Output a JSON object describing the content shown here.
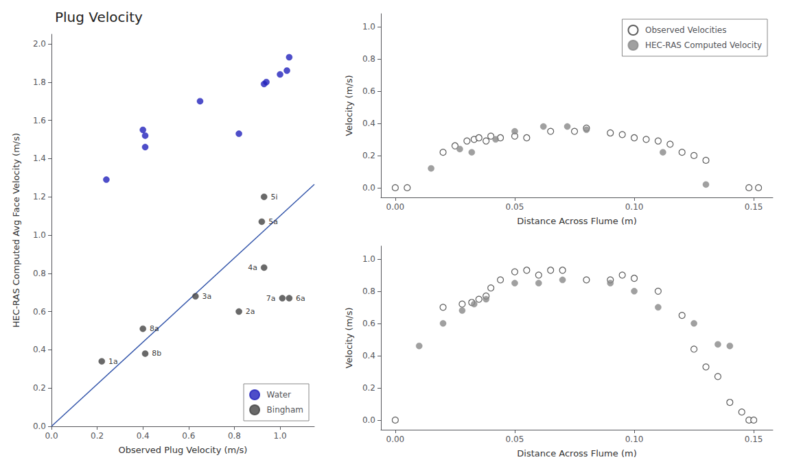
{
  "chart_data": [
    {
      "type": "scatter",
      "title": "Plug Velocity",
      "xlabel": "Observed Plug Velocity (m/s)",
      "ylabel": "HEC-RAS Computed Avg Face Velocity (m/s)",
      "xlim": [
        0.0,
        1.15
      ],
      "ylim": [
        0.0,
        2.05
      ],
      "xticks": [
        {
          "value": 0.0,
          "label": "0.0"
        },
        0.2,
        0.4,
        0.6,
        0.8,
        {
          "value": 1.0,
          "label": "1.0"
        }
      ],
      "yticks": [
        {
          "value": 0.0,
          "label": "0.0"
        },
        0.2,
        0.4,
        0.6,
        0.8,
        {
          "value": 1.0,
          "label": "1.0"
        },
        1.2,
        1.4,
        1.6,
        1.8,
        {
          "value": 2.0,
          "label": "2.0"
        }
      ],
      "grid": false,
      "legend": "lower right",
      "series": [
        {
          "type": "line",
          "color": "#3355aa",
          "x": [
            0.0,
            1.15
          ],
          "values": [
            0.0,
            1.265
          ]
        },
        {
          "name": "Water",
          "color": "#2222bb",
          "marker": "circle",
          "x": [
            0.24,
            0.4,
            0.41,
            0.41,
            0.65,
            0.82,
            0.93,
            0.94,
            1.0,
            1.03,
            1.04
          ],
          "values": [
            1.29,
            1.55,
            1.52,
            1.46,
            1.7,
            1.53,
            1.79,
            1.8,
            1.84,
            1.86,
            1.93
          ]
        },
        {
          "name": "Bingham",
          "color": "#444444",
          "marker": "circle",
          "x": [
            0.22,
            0.4,
            0.41,
            0.63,
            0.82,
            0.92,
            0.93,
            1.01,
            1.04,
            0.93
          ],
          "values": [
            0.34,
            0.51,
            0.38,
            0.68,
            0.6,
            1.07,
            0.83,
            0.67,
            0.67,
            1.2
          ],
          "labels": [
            "1a",
            "8a",
            "8b",
            "3a",
            "2a",
            "5a",
            "4a",
            "7a",
            "6a",
            "5i"
          ]
        }
      ]
    },
    {
      "type": "scatter",
      "xlabel": "Distance Across Flume (m)",
      "ylabel": "Velocity (m/s)",
      "xlim": [
        -0.006,
        0.158
      ],
      "ylim": [
        -0.06,
        1.08
      ],
      "xticks": [
        {
          "value": 0.0,
          "label": "0.00"
        },
        {
          "value": 0.05,
          "label": "0.05"
        },
        {
          "value": 0.1,
          "label": "0.10"
        },
        {
          "value": 0.15,
          "label": "0.15"
        }
      ],
      "yticks": [
        {
          "value": 0.0,
          "label": "0.0"
        },
        0.2,
        0.4,
        0.6,
        0.8,
        {
          "value": 1.0,
          "label": "1.0"
        }
      ],
      "grid": false,
      "legend": "upper right",
      "series": [
        {
          "name": "Observed Velocities",
          "color": "#333333",
          "marker": "hollow_circle",
          "x": [
            0.0,
            0.005,
            0.02,
            0.025,
            0.03,
            0.033,
            0.035,
            0.038,
            0.04,
            0.044,
            0.05,
            0.055,
            0.065,
            0.075,
            0.08,
            0.09,
            0.095,
            0.1,
            0.105,
            0.11,
            0.115,
            0.12,
            0.125,
            0.13,
            0.148,
            0.152
          ],
          "values": [
            0.0,
            0.0,
            0.22,
            0.26,
            0.29,
            0.3,
            0.31,
            0.29,
            0.32,
            0.31,
            0.32,
            0.31,
            0.35,
            0.35,
            0.37,
            0.34,
            0.33,
            0.31,
            0.3,
            0.29,
            0.27,
            0.22,
            0.2,
            0.17,
            0.0,
            0.0
          ]
        },
        {
          "name": "HEC-RAS Computed Velocity",
          "color": "#888888",
          "marker": "circle",
          "x": [
            0.015,
            0.027,
            0.032,
            0.042,
            0.05,
            0.062,
            0.072,
            0.08,
            0.112,
            0.13
          ],
          "values": [
            0.12,
            0.24,
            0.22,
            0.3,
            0.35,
            0.38,
            0.38,
            0.36,
            0.22,
            0.02
          ]
        }
      ]
    },
    {
      "type": "scatter",
      "xlabel": "Distance Across Flume (m)",
      "ylabel": "Velocity (m/s)",
      "xlim": [
        -0.006,
        0.158
      ],
      "ylim": [
        -0.06,
        1.08
      ],
      "xticks": [
        {
          "value": 0.0,
          "label": "0.00"
        },
        {
          "value": 0.05,
          "label": "0.05"
        },
        {
          "value": 0.1,
          "label": "0.10"
        },
        {
          "value": 0.15,
          "label": "0.15"
        }
      ],
      "yticks": [
        {
          "value": 0.0,
          "label": "0.0"
        },
        0.2,
        0.4,
        0.6,
        0.8,
        {
          "value": 1.0,
          "label": "1.0"
        }
      ],
      "grid": false,
      "legend": false,
      "series": [
        {
          "name": "Observed Velocities",
          "color": "#333333",
          "marker": "hollow_circle",
          "x": [
            0.0,
            0.02,
            0.028,
            0.032,
            0.035,
            0.038,
            0.04,
            0.044,
            0.05,
            0.055,
            0.06,
            0.065,
            0.07,
            0.08,
            0.09,
            0.095,
            0.1,
            0.11,
            0.12,
            0.125,
            0.13,
            0.135,
            0.14,
            0.145,
            0.148,
            0.15
          ],
          "values": [
            0.0,
            0.7,
            0.72,
            0.73,
            0.75,
            0.77,
            0.82,
            0.87,
            0.92,
            0.93,
            0.9,
            0.93,
            0.93,
            0.87,
            0.87,
            0.9,
            0.88,
            0.8,
            0.65,
            0.44,
            0.33,
            0.27,
            0.11,
            0.05,
            0.0,
            0.0
          ]
        },
        {
          "name": "HEC-RAS Computed Velocity",
          "color": "#888888",
          "marker": "circle",
          "x": [
            0.01,
            0.02,
            0.028,
            0.033,
            0.038,
            0.05,
            0.06,
            0.07,
            0.09,
            0.1,
            0.11,
            0.125,
            0.135,
            0.14
          ],
          "values": [
            0.46,
            0.6,
            0.68,
            0.72,
            0.75,
            0.85,
            0.85,
            0.87,
            0.85,
            0.8,
            0.7,
            0.6,
            0.47,
            0.46
          ]
        }
      ]
    }
  ]
}
